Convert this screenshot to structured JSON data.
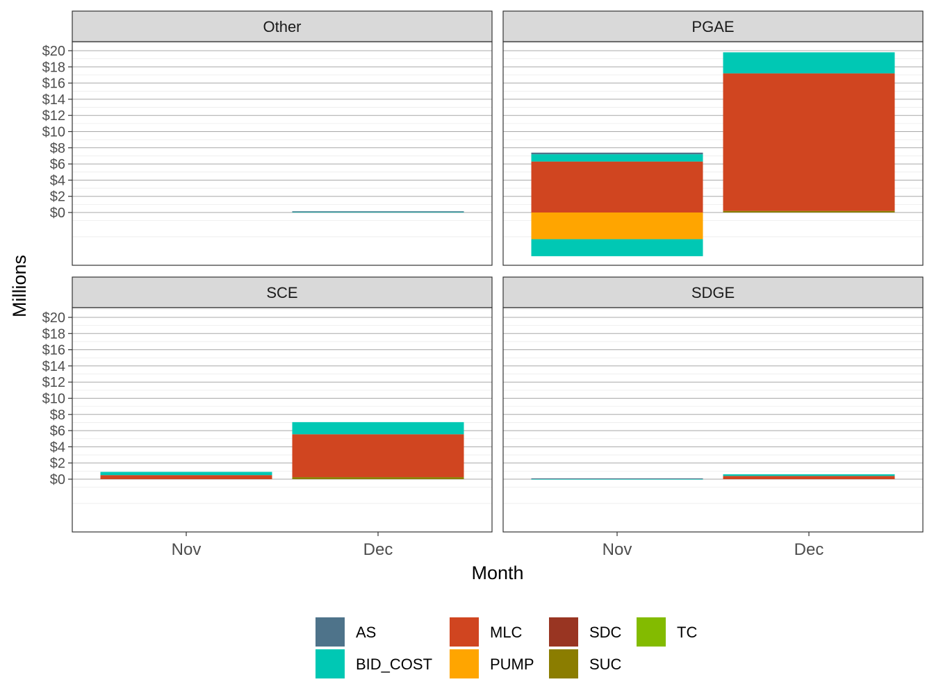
{
  "chart_data": {
    "type": "bar",
    "stacked": true,
    "facet_by": [
      "Other",
      "PGAE",
      "SCE",
      "SDGE"
    ],
    "categories": [
      "Nov",
      "Dec"
    ],
    "xlabel": "Month",
    "ylabel": "Millions",
    "ylim": [
      -5.5,
      20.5
    ],
    "yticks": [
      0,
      2,
      4,
      6,
      8,
      10,
      12,
      14,
      16,
      18,
      20
    ],
    "ytick_labels": [
      "$0",
      "$2",
      "$4",
      "$6",
      "$8",
      "$10",
      "$12",
      "$14",
      "$16",
      "$18",
      "$20"
    ],
    "grid": true,
    "legend_position": "bottom",
    "legend": [
      {
        "name": "AS",
        "color": "#4e738a"
      },
      {
        "name": "BID_COST",
        "color": "#00c8b4"
      },
      {
        "name": "MLC",
        "color": "#d04520"
      },
      {
        "name": "PUMP",
        "color": "#ffa500"
      },
      {
        "name": "SDC",
        "color": "#993522"
      },
      {
        "name": "SUC",
        "color": "#8b7d00"
      },
      {
        "name": "TC",
        "color": "#83bb00"
      }
    ],
    "panels": [
      {
        "name": "Other",
        "segments": {
          "Nov": [],
          "Dec": [
            {
              "series": "BID_COST",
              "value": 0.1
            },
            {
              "series": "AS",
              "value": 0.05
            }
          ]
        }
      },
      {
        "name": "PGAE",
        "segments": {
          "Nov": [
            {
              "series": "MLC",
              "value": 6.3
            },
            {
              "series": "BID_COST",
              "value": 0.9
            },
            {
              "series": "AS",
              "value": 0.2
            },
            {
              "series": "PUMP",
              "value": -3.3
            },
            {
              "series": "BID_COST",
              "value": -2.1
            }
          ],
          "Dec": [
            {
              "series": "SUC",
              "value": 0.2
            },
            {
              "series": "MLC",
              "value": 17.0
            },
            {
              "series": "BID_COST",
              "value": 2.6
            }
          ]
        }
      },
      {
        "name": "SCE",
        "segments": {
          "Nov": [
            {
              "series": "MLC",
              "value": 0.5
            },
            {
              "series": "BID_COST",
              "value": 0.4
            }
          ],
          "Dec": [
            {
              "series": "SUC",
              "value": 0.25
            },
            {
              "series": "MLC",
              "value": 5.3
            },
            {
              "series": "BID_COST",
              "value": 1.5
            }
          ]
        }
      },
      {
        "name": "SDGE",
        "segments": {
          "Nov": [
            {
              "series": "BID_COST",
              "value": 0.05
            },
            {
              "series": "AS",
              "value": 0.05
            }
          ],
          "Dec": [
            {
              "series": "MLC",
              "value": 0.4
            },
            {
              "series": "BID_COST",
              "value": 0.2
            }
          ]
        }
      }
    ]
  }
}
